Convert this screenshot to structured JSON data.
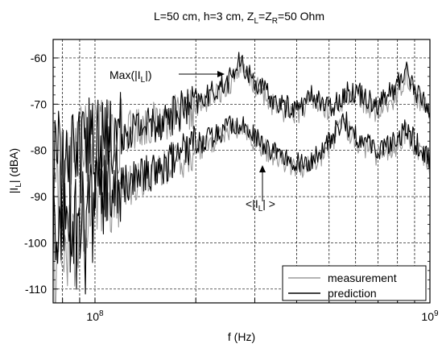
{
  "chart_data": {
    "type": "line",
    "title": "L=50 cm, h=3 cm, Z",
    "title_sub_L": "L",
    "title_mid": "=Z",
    "title_sub_R": "R",
    "title_end": "=50 Ohm",
    "xlabel": "f (Hz)",
    "ylabel_pre": "|I",
    "ylabel_sub": "L",
    "ylabel_post": "| (dBA)",
    "x_scale": "log",
    "xlim": [
      75000000,
      1000000000
    ],
    "ylim": [
      -113,
      -56
    ],
    "grid": true,
    "legend_position": "bottom-right",
    "y_ticks": [
      -60,
      -70,
      -80,
      -90,
      -100,
      -110
    ],
    "y_tick_labels": [
      "-60",
      "-70",
      "-80",
      "-90",
      "-100",
      "-110"
    ],
    "x_tick_labels": [
      {
        "value": 100000000,
        "base": "10",
        "exp": "8"
      },
      {
        "value": 1000000000,
        "base": "10",
        "exp": "9"
      }
    ],
    "annotations": {
      "max_pre": "Max(|I",
      "max_sub": "L",
      "max_post": "|)",
      "mean_pre": "<|I",
      "mean_sub": "L",
      "mean_post": "| >"
    },
    "series": [
      {
        "name": "measurement",
        "color": "#9a9a9a",
        "x": [
          75000000,
          100000000,
          150000000,
          200000000,
          250000000,
          270000000,
          300000000,
          350000000,
          400000000,
          450000000,
          500000000,
          550000000,
          600000000,
          700000000,
          800000000,
          850000000,
          900000000,
          1000000000
        ],
        "max_values": [
          -82,
          -78,
          -74,
          -71,
          -66,
          -62,
          -66,
          -71,
          -72,
          -69,
          -72,
          -69,
          -68,
          -72,
          -68,
          -63,
          -68,
          -72
        ],
        "mean_values": [
          -100,
          -92,
          -85,
          -80,
          -76,
          -75,
          -78,
          -82,
          -84,
          -83,
          -79,
          -74,
          -78,
          -81,
          -79,
          -76,
          -79,
          -84
        ]
      },
      {
        "name": "prediction",
        "color": "#000000",
        "x": [
          75000000,
          100000000,
          150000000,
          200000000,
          250000000,
          270000000,
          300000000,
          350000000,
          400000000,
          450000000,
          500000000,
          550000000,
          600000000,
          700000000,
          800000000,
          850000000,
          900000000,
          1000000000
        ],
        "max_values": [
          -80,
          -77,
          -74,
          -70,
          -65,
          -61,
          -65,
          -70,
          -71,
          -68,
          -71,
          -68,
          -67,
          -70,
          -66,
          -62,
          -67,
          -71
        ],
        "mean_values": [
          -98,
          -90,
          -84,
          -79,
          -75,
          -74,
          -77,
          -81,
          -83,
          -82,
          -78,
          -73,
          -77,
          -80,
          -78,
          -75,
          -78,
          -82
        ]
      }
    ]
  }
}
